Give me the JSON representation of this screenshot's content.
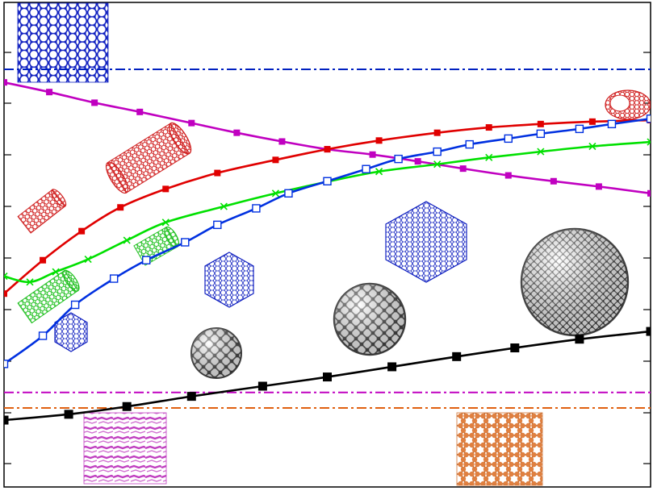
{
  "chart_data": {
    "type": "line",
    "title": "",
    "xlabel": "",
    "ylabel": "",
    "xlim": [
      0,
      100
    ],
    "ylim": [
      0,
      100
    ],
    "grid": false,
    "legend": "none",
    "series": [
      {
        "color": "#c000c0",
        "marker": "square-filled",
        "style": "solid",
        "points": [
          [
            0,
            83.5
          ],
          [
            7,
            81.5
          ],
          [
            14,
            79.3
          ],
          [
            21,
            77.4
          ],
          [
            29,
            75.1
          ],
          [
            36,
            73.1
          ],
          [
            43,
            71.3
          ],
          [
            50,
            69.7
          ],
          [
            57,
            68.6
          ],
          [
            64,
            67.2
          ],
          [
            71,
            65.7
          ],
          [
            78,
            64.3
          ],
          [
            85,
            63.1
          ],
          [
            92,
            62.0
          ],
          [
            100,
            60.6
          ]
        ]
      },
      {
        "color": "#e00000",
        "marker": "square-filled",
        "style": "solid",
        "points": [
          [
            0,
            39.9
          ],
          [
            6,
            46.8
          ],
          [
            12,
            52.8
          ],
          [
            18,
            57.7
          ],
          [
            25,
            61.5
          ],
          [
            33,
            64.8
          ],
          [
            42,
            67.5
          ],
          [
            50,
            69.7
          ],
          [
            58,
            71.5
          ],
          [
            67,
            73.1
          ],
          [
            75,
            74.2
          ],
          [
            83,
            74.9
          ],
          [
            91,
            75.4
          ],
          [
            100,
            75.7
          ]
        ]
      },
      {
        "color": "#00e000",
        "marker": "x",
        "style": "solid",
        "points": [
          [
            0,
            43.5
          ],
          [
            4,
            42.3
          ],
          [
            8,
            44.4
          ],
          [
            13,
            47.0
          ],
          [
            19,
            50.9
          ],
          [
            25,
            54.6
          ],
          [
            34,
            57.9
          ],
          [
            42,
            60.6
          ],
          [
            50,
            63.0
          ],
          [
            58,
            65.1
          ],
          [
            67,
            66.6
          ],
          [
            75,
            68.0
          ],
          [
            83,
            69.2
          ],
          [
            91,
            70.3
          ],
          [
            100,
            71.2
          ]
        ]
      },
      {
        "color": "#0030e0",
        "marker": "square-open",
        "style": "solid",
        "points": [
          [
            0,
            25.4
          ],
          [
            6,
            31.2
          ],
          [
            11,
            37.6
          ],
          [
            17,
            43.0
          ],
          [
            22,
            46.8
          ],
          [
            28,
            50.5
          ],
          [
            33,
            54.1
          ],
          [
            39,
            57.5
          ],
          [
            44,
            60.6
          ],
          [
            50,
            63.1
          ],
          [
            56,
            65.6
          ],
          [
            61,
            67.7
          ],
          [
            67,
            69.2
          ],
          [
            72,
            70.7
          ],
          [
            78,
            71.9
          ],
          [
            83,
            72.9
          ],
          [
            89,
            73.9
          ],
          [
            94,
            74.9
          ],
          [
            100,
            76.0
          ]
        ]
      },
      {
        "color": "#000000",
        "marker": "square-filled",
        "style": "solid",
        "points": [
          [
            0,
            13.8
          ],
          [
            10,
            15.0
          ],
          [
            19,
            16.6
          ],
          [
            29,
            18.7
          ],
          [
            40,
            20.8
          ],
          [
            50,
            22.7
          ],
          [
            60,
            24.8
          ],
          [
            70,
            26.9
          ],
          [
            79,
            28.7
          ],
          [
            89,
            30.5
          ],
          [
            100,
            32.1
          ]
        ]
      }
    ],
    "reference_lines": [
      {
        "y": 86.2,
        "color": "#0020c0",
        "style": "dash-dot"
      },
      {
        "y": 19.5,
        "color": "#c000c0",
        "style": "dash-dot"
      },
      {
        "y": 16.3,
        "color": "#e06010",
        "style": "dash-dot"
      }
    ],
    "insets": [
      {
        "icon": "graphene-sheet-icon",
        "color": "#1020c0"
      },
      {
        "icon": "nanotube-icon",
        "color": "#d02020"
      },
      {
        "icon": "nanotube-icon",
        "color": "#d02020"
      },
      {
        "icon": "nanotube-icon",
        "color": "#d02020"
      },
      {
        "icon": "nanotube-icon",
        "color": "#20c020"
      },
      {
        "icon": "nanotube-icon",
        "color": "#20c020"
      },
      {
        "icon": "hexagonal-flake-icon",
        "color": "#1020c0"
      },
      {
        "icon": "hexagonal-flake-icon",
        "color": "#1020c0"
      },
      {
        "icon": "hexagonal-flake-icon",
        "color": "#1020c0"
      },
      {
        "icon": "fullerene-icon",
        "color": "#404040"
      },
      {
        "icon": "fullerene-icon",
        "color": "#404040"
      },
      {
        "icon": "fullerene-icon",
        "color": "#404040"
      },
      {
        "icon": "layered-crystal-icon",
        "color": "#c040c0"
      },
      {
        "icon": "lattice-sheet-icon",
        "color": "#d07030"
      }
    ]
  }
}
